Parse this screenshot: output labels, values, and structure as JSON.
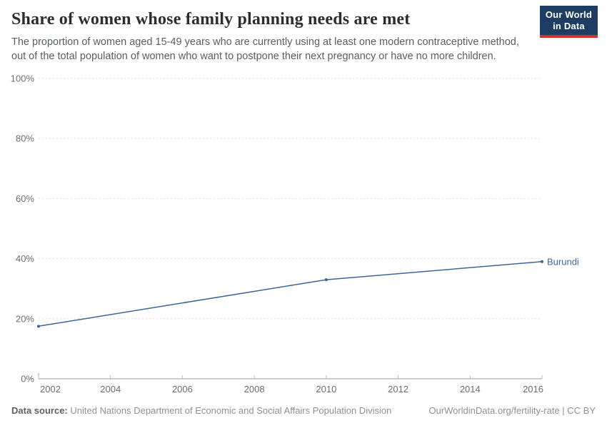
{
  "header": {
    "title": "Share of women whose family planning needs are met",
    "subtitle_line1": "The proportion of women aged 15-49 years who are currently using at least one modern contraceptive method,",
    "subtitle_line2": "out of the total population of women who want to postpone their next pregnancy or have no more children.",
    "logo": {
      "line1": "Our World",
      "line2": "in Data"
    }
  },
  "brand_colors": {
    "logo_navy": "#1d3d63",
    "logo_red": "#d0332b",
    "accent_line_blue": "#3d639d"
  },
  "chart_data": {
    "type": "line",
    "title": "Share of women whose family planning needs are met",
    "xlim": [
      2002,
      2016
    ],
    "ylim": [
      0,
      100
    ],
    "x_ticks": [
      2002,
      2004,
      2006,
      2008,
      2010,
      2012,
      2014,
      2016
    ],
    "y_ticks": [
      {
        "value": 0,
        "label": "0%"
      },
      {
        "value": 20,
        "label": "20%"
      },
      {
        "value": 40,
        "label": "40%"
      },
      {
        "value": 60,
        "label": "60%"
      },
      {
        "value": 80,
        "label": "80%"
      },
      {
        "value": 100,
        "label": "100%"
      }
    ],
    "grid": "horizontal-dashed",
    "legend_position": "end-of-line-label",
    "series": [
      {
        "name": "Burundi",
        "color": "#3d639d",
        "points": [
          {
            "year": 2002,
            "value": 17.5
          },
          {
            "year": 2010,
            "value": 33
          },
          {
            "year": 2016,
            "value": 39
          }
        ]
      }
    ]
  },
  "footer": {
    "source_label": "Data source:",
    "source_text": "United Nations Department of Economic and Social Affairs Population Division",
    "link_text": "OurWorldinData.org/fertility-rate | CC BY"
  }
}
